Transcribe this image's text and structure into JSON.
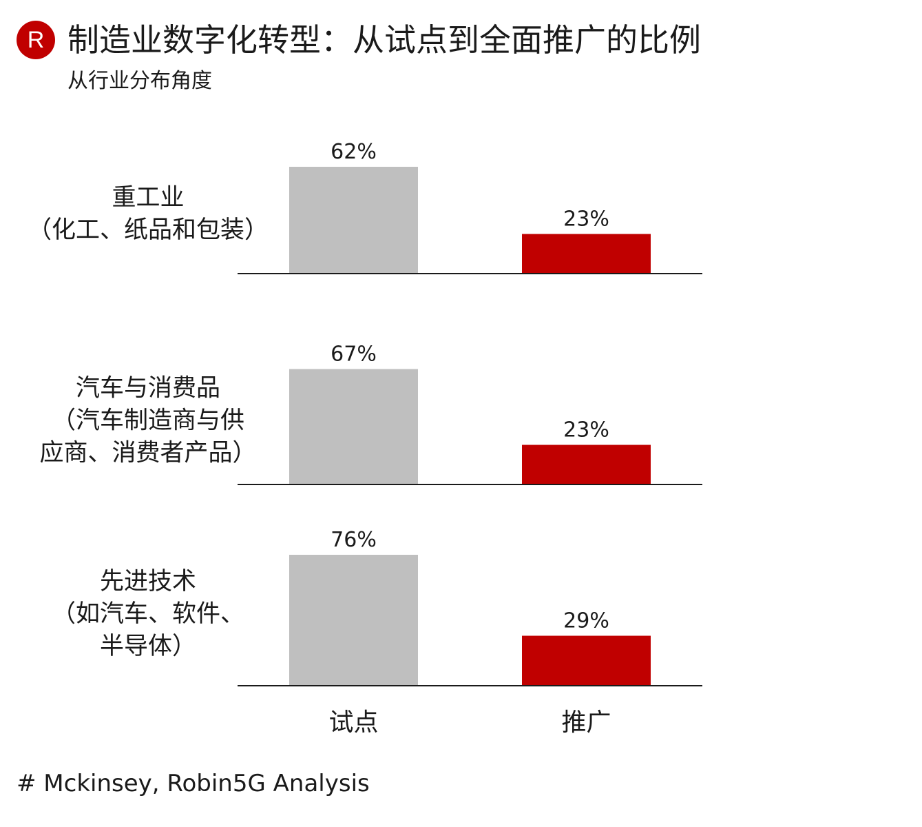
{
  "brand": {
    "logo_letter": "R",
    "accent": "#c00000"
  },
  "header": {
    "title": "制造业数字化转型：从试点到全面推广的比例",
    "subtitle": "从行业分布角度"
  },
  "footer": {
    "source": "# Mckinsey, Robin5G Analysis"
  },
  "chart_data": {
    "type": "bar",
    "title": "制造业数字化转型：从试点到全面推广的比例",
    "subtitle": "从行业分布角度",
    "groups": [
      {
        "label_lines": [
          "重工业",
          "（化工、纸品和包装）"
        ],
        "values": [
          62,
          23
        ],
        "value_labels": [
          "62%",
          "23%"
        ]
      },
      {
        "label_lines": [
          "汽车与消费品",
          "（汽车制造商与供",
          "应商、消费者产品）"
        ],
        "values": [
          67,
          23
        ],
        "value_labels": [
          "67%",
          "23%"
        ]
      },
      {
        "label_lines": [
          "先进技术",
          "（如汽车、软件、",
          "半导体）"
        ],
        "values": [
          76,
          29
        ],
        "value_labels": [
          "76%",
          "29%"
        ]
      }
    ],
    "categories": [
      "试点",
      "推广"
    ],
    "series_colors": [
      "#bfbfbf",
      "#c00000"
    ],
    "unit": "%",
    "ylim": [
      0,
      100
    ],
    "legend": "none",
    "grid": false
  }
}
